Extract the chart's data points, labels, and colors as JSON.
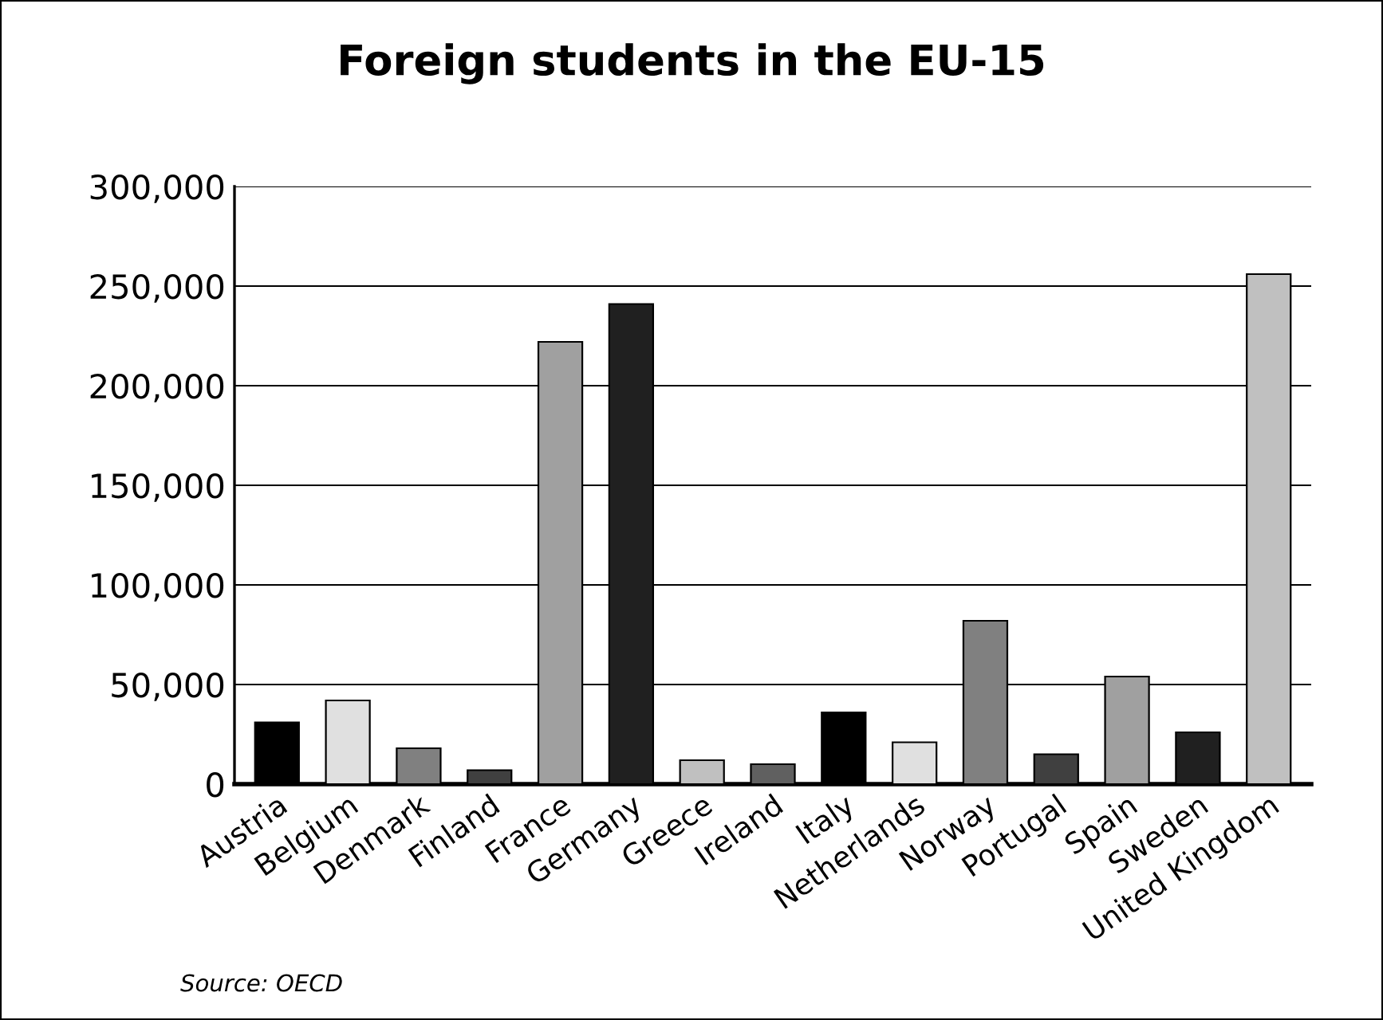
{
  "chart_data": {
    "type": "bar",
    "title": "Foreign students in the EU-15",
    "categories": [
      "Austria",
      "Belgium",
      "Denmark",
      "Finland",
      "France",
      "Germany",
      "Greece",
      "Ireland",
      "Italy",
      "Netherlands",
      "Norway",
      "Portugal",
      "Spain",
      "Sweden",
      "United Kingdom"
    ],
    "values": [
      31000,
      42000,
      18000,
      7000,
      222000,
      241000,
      12000,
      10000,
      36000,
      21000,
      82000,
      15000,
      54000,
      26000,
      256000
    ],
    "colors": [
      "#000000",
      "#e0e0e0",
      "#808080",
      "#404040",
      "#a0a0a0",
      "#202020",
      "#c0c0c0",
      "#606060",
      "#000000",
      "#e0e0e0",
      "#808080",
      "#404040",
      "#a0a0a0",
      "#202020",
      "#c0c0c0"
    ],
    "ylim": [
      0,
      300000
    ],
    "yticks": [
      {
        "value": 0,
        "label": "0"
      },
      {
        "value": 50000,
        "label": "50,000"
      },
      {
        "value": 100000,
        "label": "100,000"
      },
      {
        "value": 150000,
        "label": "150,000"
      },
      {
        "value": 200000,
        "label": "200,000"
      },
      {
        "value": 250000,
        "label": "250,000"
      },
      {
        "value": 300000,
        "label": "300,000"
      }
    ],
    "grid": "y",
    "annotations": [
      "Source: OECD"
    ]
  }
}
